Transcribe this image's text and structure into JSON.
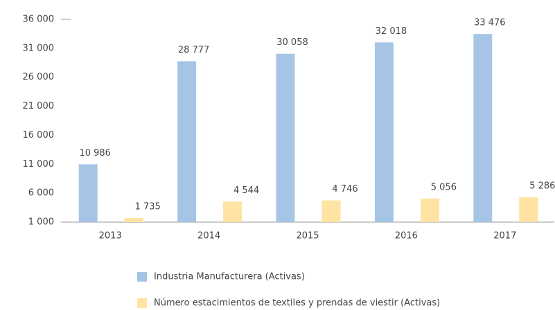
{
  "chart_data": {
    "type": "bar",
    "categories": [
      "2013",
      "2014",
      "2015",
      "2016",
      "2017"
    ],
    "series": [
      {
        "name": "Industria Manufacturera (Activas)",
        "color": "#a6c5e6",
        "values": [
          10986,
          28777,
          30058,
          32018,
          33476
        ],
        "value_labels": [
          "10 986",
          "28 777",
          "30 058",
          "32 018",
          "33 476"
        ]
      },
      {
        "name": "Número estacimientos de textiles y prendas de viestir (Activas)",
        "color": "#fee3a2",
        "values": [
          1735,
          4544,
          4746,
          5056,
          5286
        ],
        "value_labels": [
          "1 735",
          "4 544",
          "4 746",
          "5 056",
          "5 286"
        ]
      }
    ],
    "ylim": [
      1000,
      36000
    ],
    "yticks": [
      {
        "value": 1000,
        "label": "1 000"
      },
      {
        "value": 6000,
        "label": "6 000"
      },
      {
        "value": 11000,
        "label": "11 000"
      },
      {
        "value": 16000,
        "label": "16 000"
      },
      {
        "value": 21000,
        "label": "21 000"
      },
      {
        "value": 26000,
        "label": "26 000"
      },
      {
        "value": 31000,
        "label": "31 000"
      },
      {
        "value": 36000,
        "label": "36 000"
      }
    ],
    "grid": false
  }
}
